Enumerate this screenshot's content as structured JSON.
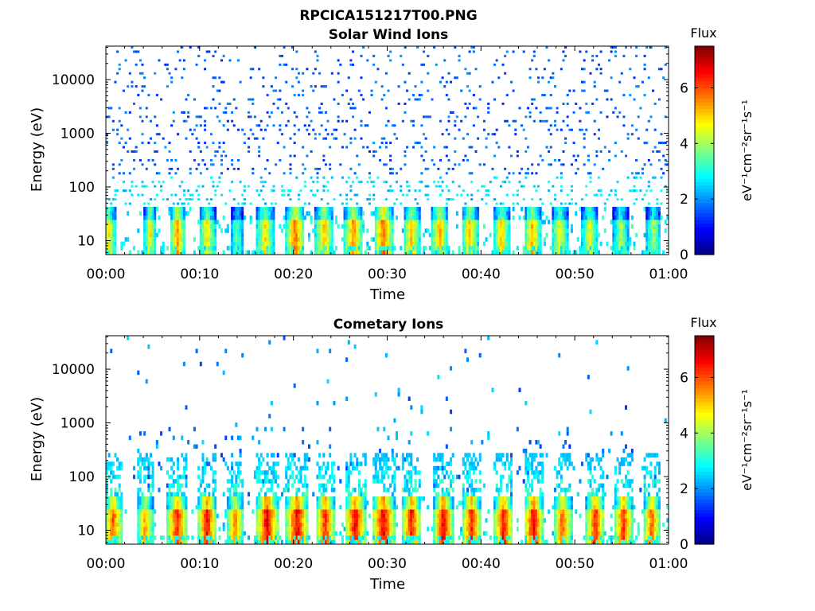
{
  "figure_title": "RPCICA151217T00.PNG",
  "chart_data": [
    {
      "type": "heatmap",
      "title": "Solar Wind Ions",
      "xlabel": "Time",
      "ylabel": "Energy (eV)",
      "x_ticks": [
        "00:00",
        "00:10",
        "00:20",
        "00:30",
        "00:40",
        "00:50",
        "01:00"
      ],
      "xlim_minutes": [
        0,
        60
      ],
      "y_scale": "log",
      "y_ticks": [
        10,
        100,
        1000,
        10000
      ],
      "y_tick_labels": [
        "10",
        "100",
        "1000",
        "10000"
      ],
      "ylim": [
        5.5,
        42000
      ],
      "colorbar": {
        "label": "Flux",
        "unit": "eV⁻¹cm⁻²sr⁻¹s⁻¹",
        "range": [
          0,
          7.5
        ],
        "ticks": [
          0,
          2,
          4,
          6
        ],
        "colormap": "jet"
      },
      "bursts": [
        {
          "t": 0.3,
          "w": 0.8,
          "peak": 4.8
        },
        {
          "t": 4.7,
          "w": 0.6,
          "peak": 5.0
        },
        {
          "t": 7.6,
          "w": 0.8,
          "peak": 5.6
        },
        {
          "t": 10.8,
          "w": 0.9,
          "peak": 4.8
        },
        {
          "t": 14.0,
          "w": 0.7,
          "peak": 3.6
        },
        {
          "t": 17.0,
          "w": 1.0,
          "peak": 4.8
        },
        {
          "t": 20.2,
          "w": 1.0,
          "peak": 5.8
        },
        {
          "t": 23.3,
          "w": 1.0,
          "peak": 5.2
        },
        {
          "t": 26.4,
          "w": 1.0,
          "peak": 5.6
        },
        {
          "t": 29.6,
          "w": 1.0,
          "peak": 6.0
        },
        {
          "t": 32.6,
          "w": 0.9,
          "peak": 5.2
        },
        {
          "t": 35.6,
          "w": 0.9,
          "peak": 5.4
        },
        {
          "t": 38.8,
          "w": 0.9,
          "peak": 5.2
        },
        {
          "t": 42.2,
          "w": 0.9,
          "peak": 5.0
        },
        {
          "t": 45.5,
          "w": 0.9,
          "peak": 5.4
        },
        {
          "t": 48.4,
          "w": 0.9,
          "peak": 4.6
        },
        {
          "t": 51.6,
          "w": 0.9,
          "peak": 4.6
        },
        {
          "t": 54.9,
          "w": 0.8,
          "peak": 4.2
        },
        {
          "t": 58.4,
          "w": 0.8,
          "peak": 4.2
        }
      ]
    },
    {
      "type": "heatmap",
      "title": "Cometary Ions",
      "xlabel": "Time",
      "ylabel": "Energy (eV)",
      "x_ticks": [
        "00:00",
        "00:10",
        "00:20",
        "00:30",
        "00:40",
        "00:50",
        "01:00"
      ],
      "xlim_minutes": [
        0,
        60
      ],
      "y_scale": "log",
      "y_ticks": [
        10,
        100,
        1000,
        10000
      ],
      "y_tick_labels": [
        "10",
        "100",
        "1000",
        "10000"
      ],
      "ylim": [
        5.5,
        42000
      ],
      "colorbar": {
        "label": "Flux",
        "unit": "eV⁻¹cm⁻²sr⁻¹s⁻¹",
        "range": [
          0,
          7.5
        ],
        "ticks": [
          0,
          2,
          4,
          6
        ],
        "colormap": "jet"
      },
      "bursts": [
        {
          "t": 0.8,
          "w": 1.0,
          "peak": 6.0
        },
        {
          "t": 4.2,
          "w": 0.9,
          "peak": 5.4
        },
        {
          "t": 7.6,
          "w": 1.1,
          "peak": 6.4
        },
        {
          "t": 10.8,
          "w": 1.0,
          "peak": 6.6
        },
        {
          "t": 13.8,
          "w": 0.9,
          "peak": 5.6
        },
        {
          "t": 17.2,
          "w": 1.2,
          "peak": 6.8
        },
        {
          "t": 20.4,
          "w": 1.2,
          "peak": 6.8
        },
        {
          "t": 23.4,
          "w": 1.0,
          "peak": 6.4
        },
        {
          "t": 26.6,
          "w": 1.1,
          "peak": 6.8
        },
        {
          "t": 29.6,
          "w": 1.2,
          "peak": 6.8
        },
        {
          "t": 32.6,
          "w": 1.0,
          "peak": 6.6
        },
        {
          "t": 36.0,
          "w": 1.0,
          "peak": 6.8
        },
        {
          "t": 39.0,
          "w": 1.0,
          "peak": 6.4
        },
        {
          "t": 42.4,
          "w": 1.0,
          "peak": 6.6
        },
        {
          "t": 45.6,
          "w": 1.0,
          "peak": 6.8
        },
        {
          "t": 48.7,
          "w": 1.0,
          "peak": 6.0
        },
        {
          "t": 52.2,
          "w": 1.0,
          "peak": 6.4
        },
        {
          "t": 55.2,
          "w": 1.0,
          "peak": 6.2
        },
        {
          "t": 58.2,
          "w": 0.9,
          "peak": 6.0
        }
      ]
    }
  ]
}
